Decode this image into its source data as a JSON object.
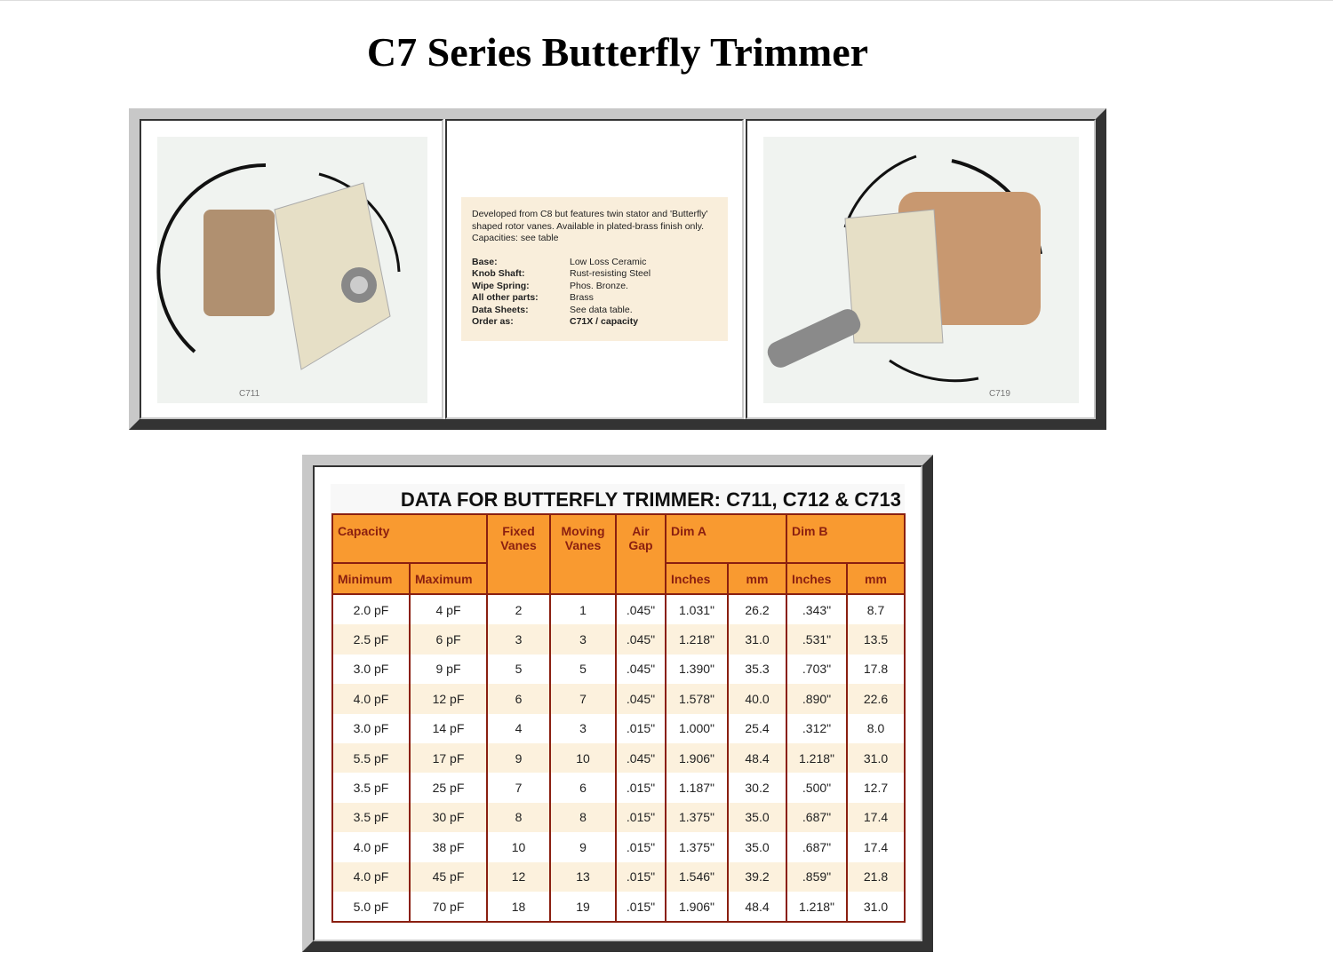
{
  "title": "C7 Series Butterfly Trimmer",
  "product_images": [
    {
      "caption": "C711"
    },
    {
      "caption": "C719"
    }
  ],
  "description": {
    "text": "Developed from C8 but features twin stator and 'Butterfly' shaped rotor vanes. Available in plated-brass finish only. Capacities: see table",
    "specs": [
      {
        "label": "Base:",
        "value": "Low Loss Ceramic"
      },
      {
        "label": "Knob Shaft:",
        "value": "Rust-resisting Steel"
      },
      {
        "label": "Wipe Spring:",
        "value": "Phos. Bronze."
      },
      {
        "label": "All other parts:",
        "value": "Brass"
      },
      {
        "label": "Data Sheets:",
        "value": "See data table."
      },
      {
        "label": "Order as:",
        "value": "C71X / capacity"
      }
    ]
  },
  "table": {
    "title": "DATA FOR BUTTERFLY TRIMMER: C711, C712 & C713",
    "headers": {
      "capacity": "Capacity",
      "fixed": "Fixed Vanes",
      "moving": "Moving Vanes",
      "air": "Air Gap",
      "dima": "Dim A",
      "dimb": "Dim B",
      "min": "Minimum",
      "max": "Maximum",
      "inches": "Inches",
      "mm": "mm"
    },
    "rows": [
      [
        "2.0 pF",
        "4 pF",
        "2",
        "1",
        ".045\"",
        "1.031\"",
        "26.2",
        ".343\"",
        "8.7"
      ],
      [
        "2.5 pF",
        "6 pF",
        "3",
        "3",
        ".045\"",
        "1.218\"",
        "31.0",
        ".531\"",
        "13.5"
      ],
      [
        "3.0 pF",
        "9 pF",
        "5",
        "5",
        ".045\"",
        "1.390\"",
        "35.3",
        ".703\"",
        "17.8"
      ],
      [
        "4.0 pF",
        "12 pF",
        "6",
        "7",
        ".045\"",
        "1.578\"",
        "40.0",
        ".890\"",
        "22.6"
      ],
      [
        "3.0 pF",
        "14 pF",
        "4",
        "3",
        ".015\"",
        "1.000\"",
        "25.4",
        ".312\"",
        "8.0"
      ],
      [
        "5.5 pF",
        "17 pF",
        "9",
        "10",
        ".045\"",
        "1.906\"",
        "48.4",
        "1.218\"",
        "31.0"
      ],
      [
        "3.5 pF",
        "25 pF",
        "7",
        "6",
        ".015\"",
        "1.187\"",
        "30.2",
        ".500\"",
        "12.7"
      ],
      [
        "3.5 pF",
        "30 pF",
        "8",
        "8",
        ".015\"",
        "1.375\"",
        "35.0",
        ".687\"",
        "17.4"
      ],
      [
        "4.0 pF",
        "38 pF",
        "10",
        "9",
        ".015\"",
        "1.375\"",
        "35.0",
        ".687\"",
        "17.4"
      ],
      [
        "4.0 pF",
        "45 pF",
        "12",
        "13",
        ".015\"",
        "1.546\"",
        "39.2",
        ".859\"",
        "21.8"
      ],
      [
        "5.0 pF",
        "70 pF",
        "18",
        "19",
        ".015\"",
        "1.906\"",
        "48.4",
        "1.218\"",
        "31.0"
      ]
    ]
  }
}
